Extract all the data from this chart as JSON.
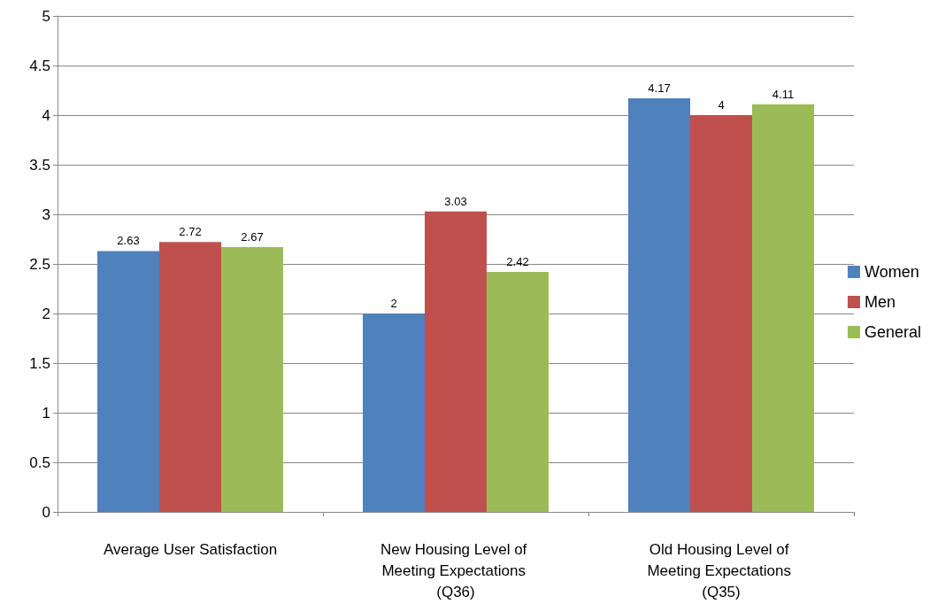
{
  "chart_data": {
    "type": "bar",
    "categories": [
      "Average User Satisfaction",
      "New Housing Level of Meeting Expectations (Q36)",
      "Old Housing Level of Meeting Expectations (Q35)"
    ],
    "series": [
      {
        "name": "Women",
        "color": "#4f81bd",
        "values": [
          2.63,
          2,
          4.17
        ]
      },
      {
        "name": "Men",
        "color": "#c0504d",
        "values": [
          2.72,
          3.03,
          4
        ]
      },
      {
        "name": "General",
        "color": "#9bbb59",
        "values": [
          2.67,
          2.42,
          4.11
        ]
      }
    ],
    "ylim": [
      0,
      5
    ],
    "yticks": [
      0,
      0.5,
      1,
      1.5,
      2,
      2.5,
      3,
      3.5,
      4,
      4.5,
      5
    ],
    "grid": "y",
    "legend": "right",
    "data_labels": true
  }
}
